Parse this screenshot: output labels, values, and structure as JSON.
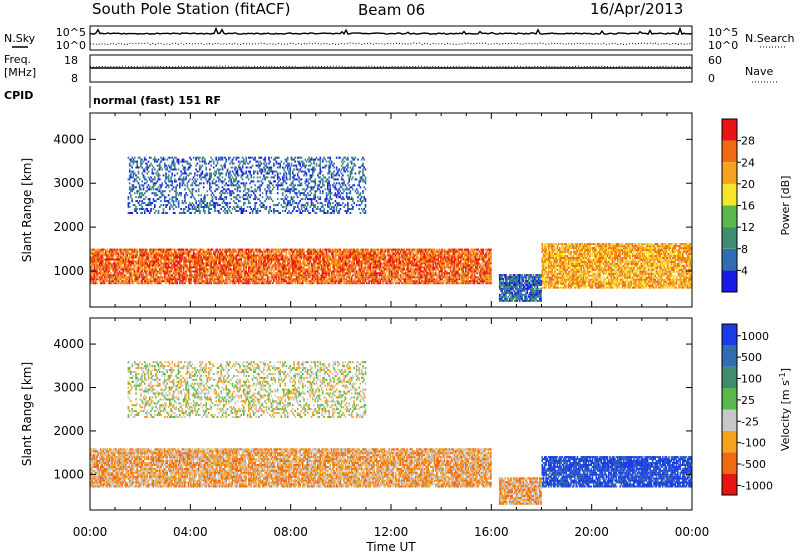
{
  "header": {
    "station": "South Pole Station (fitACF)",
    "beam": "Beam 06",
    "date": "16/Apr/2013"
  },
  "side_labels": {
    "nsky": "N.Sky",
    "nsearch": "N.Search",
    "freq_line1": "Freq.",
    "freq_line2": "[MHz]",
    "nave": "Nave",
    "cpid": "CPID"
  },
  "noise_panel": {
    "left_ticks": [
      "10^5",
      "10^0"
    ],
    "right_ticks": [
      "10^5",
      "10^0"
    ]
  },
  "freq_panel": {
    "left_ticks": [
      "18",
      "8"
    ],
    "right_ticks": [
      "60",
      "0"
    ]
  },
  "cpid_panel": {
    "text": "normal (fast) 151 RF"
  },
  "chart_data": [
    {
      "type": "heatmap",
      "title": "",
      "xlabel": "Time UT",
      "ylabel": "Slant Range [km]",
      "x_ticks": [
        "00:00",
        "04:00",
        "08:00",
        "12:00",
        "16:00",
        "20:00",
        "00:00"
      ],
      "xlim_hours": [
        0,
        24
      ],
      "ylim_km": [
        180,
        4600
      ],
      "y_ticks": [
        1000,
        2000,
        3000,
        4000
      ],
      "colorbar": {
        "label": "Power [dB]",
        "ticks": [
          "4",
          "8",
          "12",
          "16",
          "20",
          "24",
          "28"
        ],
        "colors": [
          "#1a1ae6",
          "#2f6cb0",
          "#3f8d6e",
          "#59b94a",
          "#f5e62c",
          "#f5a21f",
          "#f06a14",
          "#e81414"
        ]
      },
      "bands": [
        {
          "t0": 0.0,
          "t1": 16.0,
          "r0": 700,
          "r1": 1500,
          "level": 6
        },
        {
          "t0": 1.5,
          "t1": 11.0,
          "r0": 2300,
          "r1": 3600,
          "level": 1
        },
        {
          "t0": 18.0,
          "t1": 24.0,
          "r0": 600,
          "r1": 1600,
          "level": 5
        },
        {
          "t0": 16.3,
          "t1": 18.0,
          "r0": 300,
          "r1": 900,
          "level": 1
        }
      ]
    },
    {
      "type": "heatmap",
      "title": "",
      "xlabel": "Time UT",
      "ylabel": "Slant Range [km]",
      "x_ticks": [
        "00:00",
        "04:00",
        "08:00",
        "12:00",
        "16:00",
        "20:00",
        "00:00"
      ],
      "xlim_hours": [
        0,
        24
      ],
      "ylim_km": [
        180,
        4600
      ],
      "y_ticks": [
        1000,
        2000,
        3000,
        4000
      ],
      "colorbar": {
        "label": "Velocity [m s",
        "label_sup": "-1",
        "label_end": "]",
        "ticks": [
          "1000",
          "500",
          "100",
          "25",
          "-25",
          "-100",
          "-500",
          "-1000"
        ],
        "colors": [
          "#1a3ce6",
          "#2f6cb0",
          "#3f8d6e",
          "#59b94a",
          "#c8c8c8",
          "#f5a21f",
          "#f06a14",
          "#e81414"
        ]
      },
      "bands": [
        {
          "t0": 0.0,
          "t1": 16.0,
          "r0": 700,
          "r1": 1600,
          "level": 5
        },
        {
          "t0": 1.5,
          "t1": 11.0,
          "r0": 2300,
          "r1": 3600,
          "level": 4
        },
        {
          "t0": 18.0,
          "t1": 24.0,
          "r0": 700,
          "r1": 1400,
          "level": 0
        },
        {
          "t0": 16.3,
          "t1": 18.0,
          "r0": 300,
          "r1": 900,
          "level": 5
        }
      ]
    }
  ]
}
